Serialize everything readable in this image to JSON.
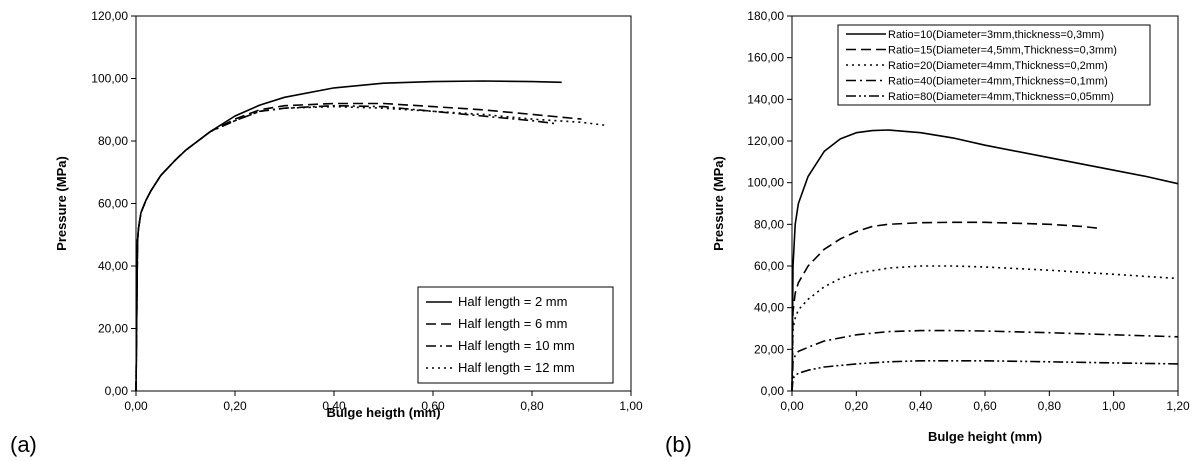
{
  "chart_data": [
    {
      "type": "line",
      "panel_label": "(a)",
      "title": "",
      "xlabel": "Bulge heigth (mm)",
      "ylabel": "Pressure (MPa)",
      "xlim": [
        0,
        1
      ],
      "ylim": [
        0,
        120
      ],
      "x_ticks": [
        "0,00",
        "0,20",
        "0,40",
        "0,60",
        "0,80",
        "1,00"
      ],
      "y_ticks": [
        "0,00",
        "20,00",
        "40,00",
        "60,00",
        "80,00",
        "100,00",
        "120,00"
      ],
      "grid": false,
      "legend_position": "bottom-right",
      "series": [
        {
          "name": "Half length = 2 mm",
          "dash": "solid",
          "x": [
            0,
            0.003,
            0.005,
            0.01,
            0.02,
            0.03,
            0.05,
            0.08,
            0.1,
            0.15,
            0.2,
            0.25,
            0.3,
            0.4,
            0.5,
            0.6,
            0.7,
            0.8,
            0.86
          ],
          "y": [
            0,
            48,
            52,
            57,
            61,
            64,
            69,
            74,
            77,
            83,
            88,
            91.5,
            94,
            97,
            98.5,
            99,
            99.2,
            99,
            98.8
          ]
        },
        {
          "name": "Half length = 6 mm",
          "dash": "dash",
          "x": [
            0,
            0.003,
            0.005,
            0.01,
            0.02,
            0.03,
            0.05,
            0.08,
            0.1,
            0.15,
            0.2,
            0.25,
            0.3,
            0.4,
            0.5,
            0.6,
            0.7,
            0.8,
            0.9
          ],
          "y": [
            0,
            48,
            52,
            57,
            61,
            64,
            69,
            74,
            77,
            83,
            87,
            90,
            91.3,
            92,
            92,
            91,
            90,
            88.5,
            87
          ]
        },
        {
          "name": "Half length = 10 mm",
          "dash": "dashdot",
          "x": [
            0,
            0.003,
            0.005,
            0.01,
            0.02,
            0.03,
            0.05,
            0.08,
            0.1,
            0.15,
            0.2,
            0.25,
            0.3,
            0.4,
            0.5,
            0.6,
            0.7,
            0.8,
            0.85
          ],
          "y": [
            0,
            48,
            52,
            57,
            61,
            64,
            69,
            74,
            77,
            83,
            86.5,
            89.5,
            90.5,
            91.3,
            91,
            89.5,
            88,
            86.5,
            85.5
          ]
        },
        {
          "name": "Half length = 12 mm",
          "dash": "dot",
          "x": [
            0,
            0.003,
            0.005,
            0.01,
            0.02,
            0.03,
            0.05,
            0.08,
            0.1,
            0.15,
            0.2,
            0.25,
            0.3,
            0.4,
            0.5,
            0.6,
            0.7,
            0.8,
            0.9,
            0.95
          ],
          "y": [
            0,
            48,
            52,
            57,
            61,
            64,
            69,
            74,
            77,
            83,
            86.5,
            89.5,
            90.5,
            91,
            90.5,
            89.5,
            88.5,
            87,
            86,
            85
          ]
        }
      ]
    },
    {
      "type": "line",
      "panel_label": "(b)",
      "title": "",
      "xlabel": "Bulge height (mm)",
      "ylabel": "Pressure (MPa)",
      "xlim": [
        0,
        1.2
      ],
      "ylim": [
        0,
        180
      ],
      "x_ticks": [
        "0,00",
        "0,20",
        "0,40",
        "0,60",
        "0,80",
        "1,00",
        "1,20"
      ],
      "y_ticks": [
        "0,00",
        "20,00",
        "40,00",
        "60,00",
        "80,00",
        "100,00",
        "120,00",
        "140,00",
        "160,00",
        "180,00"
      ],
      "grid": false,
      "legend_position": "top-right",
      "series": [
        {
          "name": "Ratio=10(Diameter=3mm,thickness=0,3mm)",
          "dash": "solid",
          "x": [
            0,
            0.003,
            0.01,
            0.02,
            0.05,
            0.1,
            0.15,
            0.2,
            0.25,
            0.3,
            0.4,
            0.5,
            0.6,
            0.8,
            1.0,
            1.1,
            1.2
          ],
          "y": [
            0,
            60,
            80,
            90,
            103,
            115,
            121,
            124,
            125,
            125.3,
            124,
            121.5,
            118,
            112,
            106,
            103,
            99.5
          ]
        },
        {
          "name": "Ratio=15(Diameter=4,5mm,Thickness=0,3mm)",
          "dash": "dash",
          "x": [
            0,
            0.003,
            0.01,
            0.02,
            0.05,
            0.1,
            0.15,
            0.2,
            0.25,
            0.3,
            0.4,
            0.5,
            0.6,
            0.7,
            0.8,
            0.9,
            0.96
          ],
          "y": [
            0,
            38,
            47,
            52,
            60,
            68,
            73,
            76.5,
            79,
            80,
            80.8,
            81,
            81,
            80.5,
            80,
            79,
            78
          ]
        },
        {
          "name": "Ratio=20(Diameter=4mm,Thickness=0,2mm)",
          "dash": "dot",
          "x": [
            0,
            0.003,
            0.01,
            0.02,
            0.05,
            0.1,
            0.15,
            0.2,
            0.3,
            0.4,
            0.5,
            0.6,
            0.8,
            1.0,
            1.1,
            1.2
          ],
          "y": [
            0,
            30,
            35,
            39,
            44,
            50,
            54,
            56.5,
            59,
            60,
            60,
            59.5,
            58,
            56,
            55,
            54
          ]
        },
        {
          "name": "Ratio=40(Diameter=4mm,Thickness=0,1mm)",
          "dash": "dashdot",
          "x": [
            0,
            0.003,
            0.01,
            0.02,
            0.05,
            0.1,
            0.2,
            0.3,
            0.4,
            0.5,
            0.6,
            0.8,
            1.0,
            1.2
          ],
          "y": [
            0,
            14,
            17,
            19,
            21,
            24,
            27,
            28.5,
            29,
            29,
            28.8,
            28,
            27,
            26
          ]
        },
        {
          "name": "Ratio=80(Diameter=4mm,Thickness=0,05mm)",
          "dash": "dashdotdot",
          "x": [
            0,
            0.003,
            0.01,
            0.02,
            0.05,
            0.1,
            0.2,
            0.3,
            0.4,
            0.5,
            0.6,
            0.8,
            1.0,
            1.2
          ],
          "y": [
            0,
            6,
            7.5,
            8.5,
            10,
            11.5,
            13,
            14,
            14.5,
            14.5,
            14.5,
            14,
            13.5,
            13
          ]
        }
      ]
    }
  ]
}
